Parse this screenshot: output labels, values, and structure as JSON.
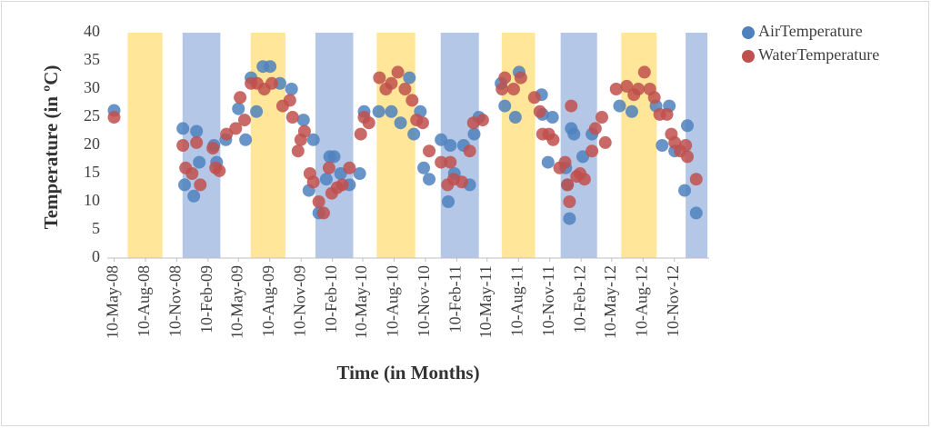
{
  "chart_data": {
    "type": "scatter",
    "x_label": "Time (in Months)",
    "y_label": "Temperature (in ºC)",
    "xlim": [
      "2008-04-20",
      "2013-02-20"
    ],
    "xticks": [
      {
        "value": "2008-05-10",
        "label": "10-May-08"
      },
      {
        "value": "2008-08-10",
        "label": "10-Aug-08"
      },
      {
        "value": "2008-11-10",
        "label": "10-Nov-08"
      },
      {
        "value": "2009-02-10",
        "label": "10-Feb-09"
      },
      {
        "value": "2009-05-10",
        "label": "10-May-09"
      },
      {
        "value": "2009-08-10",
        "label": "10-Aug-09"
      },
      {
        "value": "2009-11-10",
        "label": "10-Nov-09"
      },
      {
        "value": "2010-02-10",
        "label": "10-Feb-10"
      },
      {
        "value": "2010-05-10",
        "label": "10-May-10"
      },
      {
        "value": "2010-08-10",
        "label": "10-Aug-10"
      },
      {
        "value": "2010-11-10",
        "label": "10-Nov-10"
      },
      {
        "value": "2011-02-10",
        "label": "10-Feb-11"
      },
      {
        "value": "2011-05-10",
        "label": "10-May-11"
      },
      {
        "value": "2011-08-10",
        "label": "10-Aug-11"
      },
      {
        "value": "2011-11-10",
        "label": "10-Nov-11"
      },
      {
        "value": "2012-02-10",
        "label": "10-Feb-12"
      },
      {
        "value": "2012-05-10",
        "label": "10-May-12"
      },
      {
        "value": "2012-08-10",
        "label": "10-Aug-12"
      },
      {
        "value": "2012-11-10",
        "label": "10-Nov-12"
      }
    ],
    "ylim": [
      0,
      40
    ],
    "yticks": [
      0,
      5,
      10,
      15,
      20,
      25,
      30,
      35,
      40
    ],
    "legend": "top-right",
    "season_bands": [
      {
        "start": "2008-06-19",
        "end": "2008-09-29",
        "color": "#ffe699"
      },
      {
        "start": "2008-11-27",
        "end": "2009-03-18",
        "color": "#b4c7e7"
      },
      {
        "start": "2009-06-15",
        "end": "2009-09-25",
        "color": "#ffe699"
      },
      {
        "start": "2009-12-22",
        "end": "2010-04-12",
        "color": "#b4c7e7"
      },
      {
        "start": "2010-06-20",
        "end": "2010-10-11",
        "color": "#ffe699"
      },
      {
        "start": "2010-12-25",
        "end": "2011-04-16",
        "color": "#b4c7e7"
      },
      {
        "start": "2011-06-22",
        "end": "2011-09-28",
        "color": "#ffe699"
      },
      {
        "start": "2011-12-12",
        "end": "2012-03-28",
        "color": "#b4c7e7"
      },
      {
        "start": "2012-06-07",
        "end": "2012-09-19",
        "color": "#ffe699"
      },
      {
        "start": "2012-12-13",
        "end": "2013-02-15",
        "color": "#b4c7e7"
      }
    ],
    "series": [
      {
        "name": "AirTemperature",
        "color": "#4f81bd",
        "x": [
          "2008-05-10",
          "2008-11-28",
          "2008-12-03",
          "2008-12-30",
          "2009-01-07",
          "2009-01-15",
          "2009-02-27",
          "2009-03-07",
          "2009-04-03",
          "2009-05-10",
          "2009-05-31",
          "2009-06-16",
          "2009-07-02",
          "2009-07-21",
          "2009-08-11",
          "2009-09-09",
          "2009-10-13",
          "2009-11-17",
          "2009-12-03",
          "2009-12-16",
          "2010-01-01",
          "2010-01-23",
          "2010-02-02",
          "2010-02-15",
          "2010-03-06",
          "2010-04-01",
          "2010-05-01",
          "2010-05-14",
          "2010-06-26",
          "2010-08-02",
          "2010-08-29",
          "2010-09-24",
          "2010-10-07",
          "2010-10-26",
          "2010-11-05",
          "2010-11-21",
          "2010-12-26",
          "2011-01-16",
          "2011-01-22",
          "2011-02-03",
          "2011-03-02",
          "2011-03-20",
          "2011-04-02",
          "2011-04-16",
          "2011-06-20",
          "2011-07-01",
          "2011-08-01",
          "2011-08-12",
          "2011-10-17",
          "2011-10-20",
          "2011-11-05",
          "2011-11-18",
          "2011-12-27",
          "2012-01-01",
          "2012-01-07",
          "2012-01-12",
          "2012-01-20",
          "2012-02-15",
          "2012-03-13",
          "2012-06-02",
          "2012-07-08",
          "2012-09-17",
          "2012-10-05",
          "2012-10-26",
          "2012-11-11",
          "2012-12-10",
          "2012-12-18",
          "2013-01-13"
        ],
        "values": [
          26.2,
          23,
          13,
          11,
          22.5,
          17,
          20,
          17,
          21,
          26.5,
          21,
          32,
          26,
          34,
          34,
          31,
          30,
          24.5,
          12,
          21,
          8,
          14,
          18,
          18,
          15,
          13,
          15,
          26,
          26,
          26,
          24,
          32,
          22,
          26,
          16,
          14,
          21,
          10,
          20,
          15,
          20,
          13,
          22,
          25,
          31,
          27,
          25,
          33,
          29,
          25.5,
          17,
          25,
          16,
          13,
          7,
          23,
          22,
          18,
          22,
          27,
          26,
          27,
          20,
          27,
          19,
          12,
          23.5,
          8
        ]
      },
      {
        "name": "WaterTemperature",
        "color": "#c0504d",
        "x": [
          "2008-05-10",
          "2008-11-28",
          "2008-12-06",
          "2008-12-25",
          "2009-01-07",
          "2009-01-18",
          "2009-02-24",
          "2009-03-04",
          "2009-03-15",
          "2009-04-05",
          "2009-05-02",
          "2009-05-15",
          "2009-05-28",
          "2009-06-16",
          "2009-07-04",
          "2009-07-25",
          "2009-08-16",
          "2009-09-17",
          "2009-10-08",
          "2009-10-16",
          "2009-11-01",
          "2009-11-09",
          "2009-11-20",
          "2009-12-06",
          "2009-12-16",
          "2010-01-01",
          "2010-01-15",
          "2010-01-31",
          "2010-02-08",
          "2010-02-24",
          "2010-03-11",
          "2010-04-01",
          "2010-05-04",
          "2010-05-14",
          "2010-05-28",
          "2010-06-28",
          "2010-07-17",
          "2010-08-02",
          "2010-08-21",
          "2010-09-11",
          "2010-10-02",
          "2010-10-15",
          "2010-11-02",
          "2010-11-21",
          "2010-12-26",
          "2011-01-14",
          "2011-01-22",
          "2011-02-01",
          "2011-02-25",
          "2011-03-20",
          "2011-03-31",
          "2011-04-27",
          "2011-06-23",
          "2011-07-01",
          "2011-07-27",
          "2011-08-17",
          "2011-09-26",
          "2011-10-12",
          "2011-10-20",
          "2011-11-07",
          "2011-11-20",
          "2011-12-09",
          "2011-12-25",
          "2012-01-01",
          "2012-01-07",
          "2012-01-12",
          "2012-01-28",
          "2012-02-07",
          "2012-02-20",
          "2012-03-13",
          "2012-03-23",
          "2012-04-11",
          "2012-04-21",
          "2012-05-23",
          "2012-06-23",
          "2012-07-14",
          "2012-07-27",
          "2012-08-14",
          "2012-08-30",
          "2012-09-12",
          "2012-09-28",
          "2012-10-19",
          "2012-11-01",
          "2012-11-11",
          "2012-11-27",
          "2012-12-13",
          "2012-12-18",
          "2013-01-13"
        ],
        "values": [
          25,
          20,
          16,
          15,
          20.5,
          13,
          19.5,
          16,
          15.5,
          22,
          23,
          28.5,
          24.5,
          31,
          31,
          30,
          31,
          27,
          28,
          25,
          19,
          21,
          22.5,
          15,
          13.5,
          10,
          8,
          16,
          11.5,
          12.5,
          13,
          16,
          22,
          25,
          24,
          32,
          30,
          31,
          33,
          30,
          28,
          24.5,
          24,
          19,
          17,
          13,
          17,
          14,
          13.5,
          19,
          24,
          24.5,
          30,
          32,
          30,
          32,
          28.5,
          26,
          22,
          22,
          21,
          16,
          17,
          13,
          10,
          27,
          14.5,
          15,
          14,
          19,
          23,
          25,
          20.5,
          30,
          30.5,
          29,
          30,
          33,
          30,
          28.5,
          25.5,
          25.5,
          22,
          20.5,
          19,
          20,
          18,
          14
        ]
      }
    ]
  }
}
